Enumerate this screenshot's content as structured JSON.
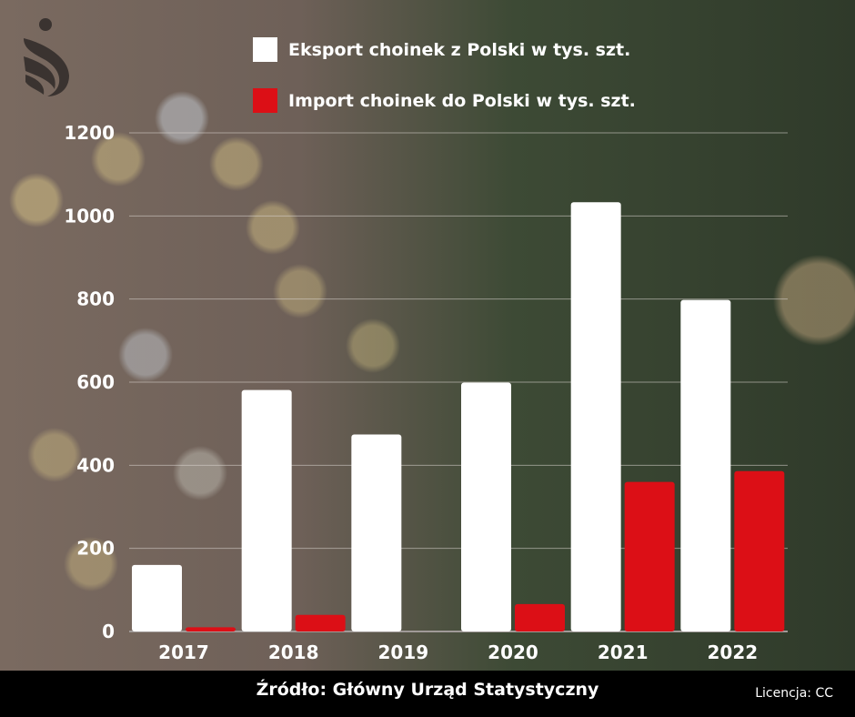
{
  "legend": [
    {
      "label": "Eksport choinek z Polski w tys. szt.",
      "color": "#ffffff"
    },
    {
      "label": "Import choinek do Polski w tys. szt.",
      "color": "#dc0f16"
    }
  ],
  "footer": {
    "source": "Źródło: Główny Urząd Statystyczny",
    "license": "Licencja: CC"
  },
  "chart_data": {
    "type": "bar",
    "title": "",
    "xlabel": "",
    "ylabel": "",
    "categories": [
      "2017",
      "2018",
      "2019",
      "2020",
      "2021",
      "2022"
    ],
    "series": [
      {
        "name": "Eksport choinek z Polski w tys. szt.",
        "color": "#ffffff",
        "values": [
          160,
          581,
          474,
          599,
          1033,
          798
        ]
      },
      {
        "name": "Import choinek do Polski w tys. szt.",
        "color": "#dc0f16",
        "values": [
          10,
          40,
          0,
          66,
          360,
          386
        ]
      }
    ],
    "ylim": [
      0,
      1200
    ],
    "yticks": [
      "0",
      "200",
      "400",
      "600",
      "800",
      "1000",
      "1200"
    ],
    "grid": true,
    "legend_position": "top"
  }
}
